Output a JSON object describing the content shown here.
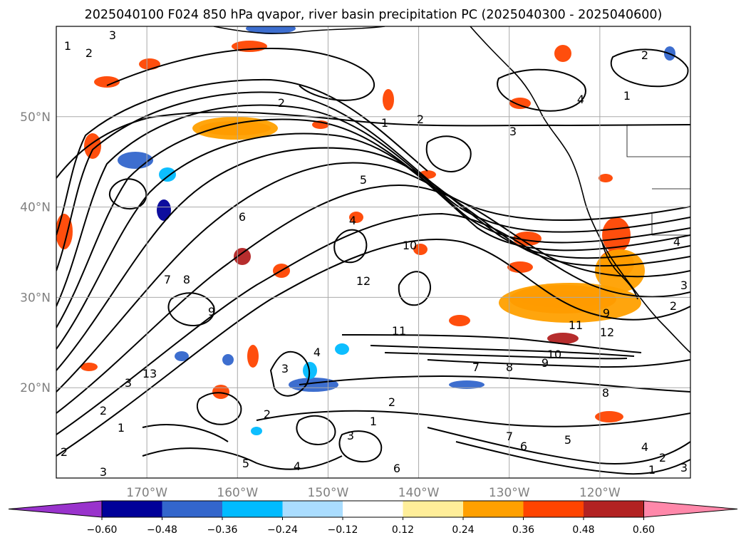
{
  "chart_data": {
    "type": "map",
    "title": "2025040100 F024 850 hPa qvapor, river basin precipitation PC (2025040300 - 2025040600)",
    "lon_range": [
      -180,
      -110
    ],
    "lat_range": [
      10,
      60
    ],
    "lat_ticks": [
      {
        "value": 50,
        "label": "50°N"
      },
      {
        "value": 40,
        "label": "40°N"
      },
      {
        "value": 30,
        "label": "30°N"
      },
      {
        "value": 20,
        "label": "20°N"
      }
    ],
    "lon_ticks": [
      {
        "value": -170,
        "label": "170°W"
      },
      {
        "value": -160,
        "label": "160°W"
      },
      {
        "value": -150,
        "label": "150°W"
      },
      {
        "value": -140,
        "label": "140°W"
      },
      {
        "value": -130,
        "label": "130°W"
      },
      {
        "value": -120,
        "label": "120°W"
      }
    ],
    "grid": true,
    "colorbar": {
      "levels": [
        "−0.60",
        "−0.48",
        "−0.36",
        "−0.24",
        "−0.12",
        "0.12",
        "0.24",
        "0.36",
        "0.48",
        "0.60"
      ],
      "colors": [
        "#9933cc",
        "#000099",
        "#3366cc",
        "#00bbff",
        "#aaddff",
        "#ffffff",
        "#ffee99",
        "#ffa000",
        "#ff4400",
        "#b22222",
        "#ff88aa"
      ],
      "extend": "both"
    },
    "contour_labels": [
      "1",
      "2",
      "3",
      "2",
      "1",
      "2",
      "3",
      "4",
      "5",
      "6",
      "7",
      "8",
      "9",
      "10",
      "11",
      "12",
      "13",
      "3",
      "2",
      "1",
      "2",
      "3",
      "4",
      "4",
      "3",
      "2",
      "1",
      "2",
      "3",
      "4",
      "5",
      "6",
      "7",
      "8",
      "9",
      "10",
      "11",
      "12",
      "9",
      "8",
      "7",
      "6",
      "5",
      "4",
      "2",
      "3",
      "1",
      "2",
      "1",
      "4",
      "3",
      "2"
    ]
  },
  "colors": {
    "contour": "#000000",
    "grid": "#aaaaaa",
    "axis_text": "#808080"
  }
}
